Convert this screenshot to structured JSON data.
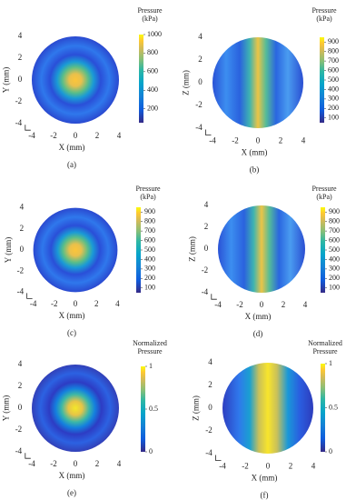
{
  "chart_data": [
    {
      "type": "heatmap",
      "panel": "(a)",
      "xlabel": "X (mm)",
      "ylabel": "Y (mm)",
      "xlim": [
        -4,
        4
      ],
      "ylim": [
        -4,
        4
      ],
      "xticks": [
        -4,
        -2,
        0,
        2,
        4
      ],
      "yticks": [
        -4,
        -2,
        0,
        2,
        4
      ],
      "colorbar": {
        "title": [
          "Pressure",
          "(kPa)"
        ],
        "lim": [
          50,
          1000
        ],
        "ticks": [
          200,
          400,
          600,
          800,
          1000
        ]
      }
    },
    {
      "type": "heatmap",
      "panel": "(b)",
      "xlabel": "X (mm)",
      "ylabel": "Z (mm)",
      "xlim": [
        -4,
        4
      ],
      "ylim": [
        -4,
        4
      ],
      "xticks": [
        -4,
        -2,
        0,
        2,
        4
      ],
      "yticks": [
        -4,
        -2,
        0,
        2,
        4
      ],
      "colorbar": {
        "title": [
          "Pressure",
          "(kPa)"
        ],
        "lim": [
          50,
          950
        ],
        "ticks": [
          100,
          200,
          300,
          400,
          500,
          600,
          700,
          800,
          900
        ]
      }
    },
    {
      "type": "heatmap",
      "panel": "(c)",
      "xlabel": "X (mm)",
      "ylabel": "Y (mm)",
      "xlim": [
        -4,
        4
      ],
      "ylim": [
        -4,
        4
      ],
      "xticks": [
        -4,
        -2,
        0,
        2,
        4
      ],
      "yticks": [
        -4,
        -2,
        0,
        2,
        4
      ],
      "colorbar": {
        "title": [
          "Pressure",
          "(kPa)"
        ],
        "lim": [
          50,
          950
        ],
        "ticks": [
          100,
          200,
          300,
          400,
          500,
          600,
          700,
          800,
          900
        ]
      }
    },
    {
      "type": "heatmap",
      "panel": "(d)",
      "xlabel": "X (mm)",
      "ylabel": "Z (mm)",
      "xlim": [
        -4,
        4
      ],
      "ylim": [
        -4,
        4
      ],
      "xticks": [
        -4,
        -2,
        0,
        2,
        4
      ],
      "yticks": [
        -4,
        -2,
        0,
        2,
        4
      ],
      "colorbar": {
        "title": [
          "Pressure",
          "(kPa)"
        ],
        "lim": [
          50,
          950
        ],
        "ticks": [
          100,
          200,
          300,
          400,
          500,
          600,
          700,
          800,
          900
        ]
      }
    },
    {
      "type": "heatmap",
      "panel": "(e)",
      "xlabel": "X (mm)",
      "ylabel": "Y (mm)",
      "xlim": [
        -4,
        4
      ],
      "ylim": [
        -4,
        4
      ],
      "xticks": [
        -4,
        -2,
        0,
        2,
        4
      ],
      "yticks": [
        -4,
        -2,
        0,
        2,
        4
      ],
      "colorbar": {
        "title": [
          "Normalized",
          "Pressure"
        ],
        "lim": [
          0,
          1
        ],
        "ticks": [
          0,
          0.5,
          1
        ]
      }
    },
    {
      "type": "heatmap",
      "panel": "(f)",
      "xlabel": "X (mm)",
      "ylabel": "Z (mm)",
      "xlim": [
        -4,
        4
      ],
      "ylim": [
        -4,
        4
      ],
      "xticks": [
        -4,
        -2,
        0,
        2,
        4
      ],
      "yticks": [
        -4,
        -2,
        0,
        2,
        4
      ],
      "colorbar": {
        "title": [
          "Normalized",
          "Pressure"
        ],
        "lim": [
          0,
          1
        ],
        "ticks": [
          0,
          0.5,
          1
        ]
      }
    }
  ]
}
